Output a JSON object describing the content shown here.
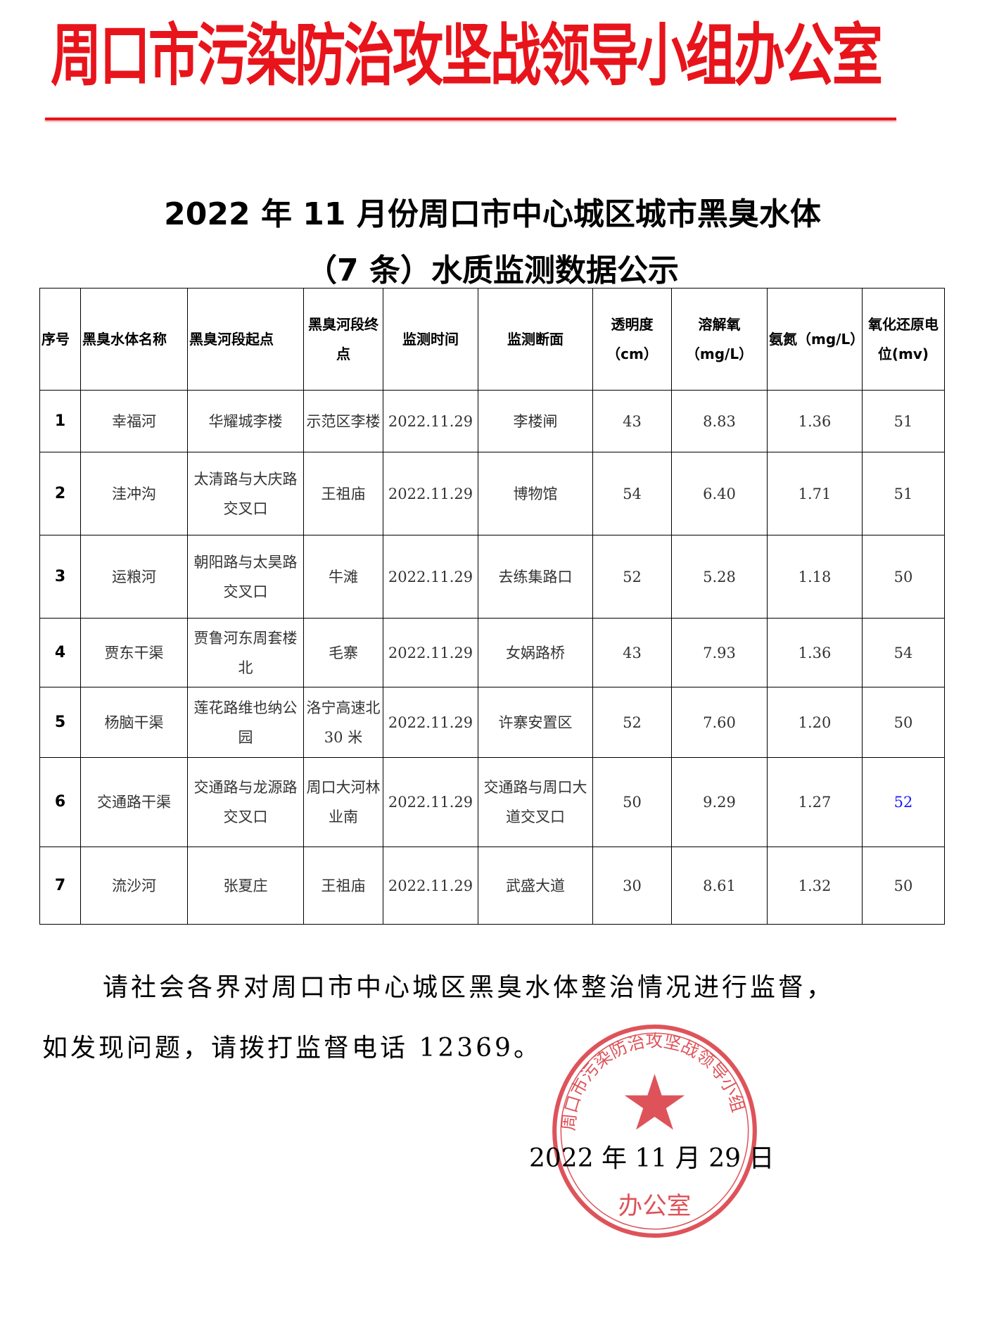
{
  "header": {
    "organization": "周口市污染防治攻坚战领导小组办公室",
    "accent": "#e8141b"
  },
  "title": {
    "line1": "2022 年 11 月份周口市中心城区城市黑臭水体",
    "line2": "（7 条）水质监测数据公示"
  },
  "table": {
    "columns": [
      "序号",
      "黑臭水体名称",
      "黑臭河段起点",
      "黑臭河段终点",
      "监测时间",
      "监测断面",
      "透明度（cm）",
      "溶解氧（mg/L）",
      "氨氮（mg/L）",
      "氧化还原电位(mv)"
    ],
    "rows": [
      [
        "1",
        "幸福河",
        "华耀城李楼",
        "示范区李楼",
        "2022.11.29",
        "李楼闸",
        "43",
        "8.83",
        "1.36",
        "51"
      ],
      [
        "2",
        "洼冲沟",
        "太清路与大庆路交叉口",
        "王祖庙",
        "2022.11.29",
        "博物馆",
        "54",
        "6.40",
        "1.71",
        "51"
      ],
      [
        "3",
        "运粮河",
        "朝阳路与太昊路交叉口",
        "牛滩",
        "2022.11.29",
        "去练集路口",
        "52",
        "5.28",
        "1.18",
        "50"
      ],
      [
        "4",
        "贾东干渠",
        "贾鲁河东周套楼北",
        "毛寨",
        "2022.11.29",
        "女娲路桥",
        "43",
        "7.93",
        "1.36",
        "54"
      ],
      [
        "5",
        "杨脑干渠",
        "莲花路维也纳公园",
        "洛宁高速北 30 米",
        "2022.11.29",
        "许寨安置区",
        "52",
        "7.60",
        "1.20",
        "50"
      ],
      [
        "6",
        "交通路干渠",
        "交通路与龙源路交叉口",
        "周口大河林业南",
        "2022.11.29",
        "交通路与周口大道交叉口",
        "50",
        "9.29",
        "1.27",
        "52"
      ],
      [
        "7",
        "流沙河",
        "张夏庄",
        "王祖庙",
        "2022.11.29",
        "武盛大道",
        "30",
        "8.61",
        "1.32",
        "50"
      ]
    ]
  },
  "notice": {
    "line1": "请社会各界对周口市中心城区黑臭水体整治情况进行监督，",
    "line2": "如发现问题，请拨打监督电话 12369。"
  },
  "date": "2022 年 11 月 29 日",
  "stamp": {
    "text": "周口市污染防治攻坚战领导小组办公室",
    "color": "#d9363e"
  }
}
